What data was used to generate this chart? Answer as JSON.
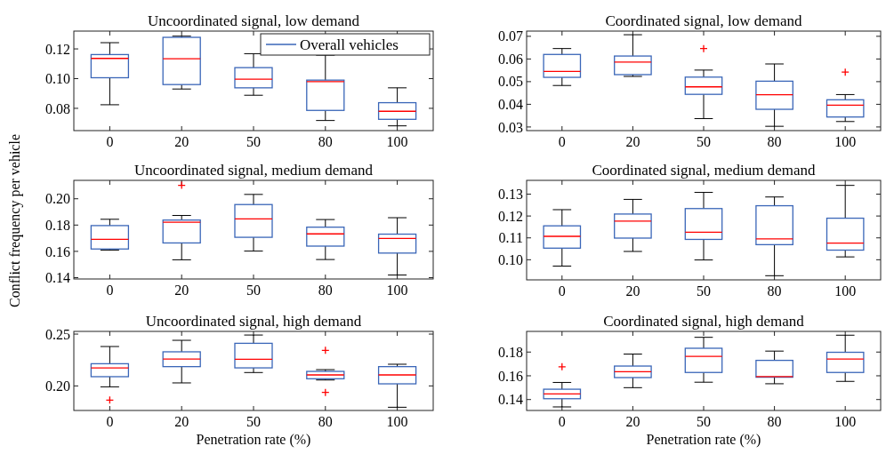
{
  "chart_data": [
    {
      "type": "box",
      "title": "Uncoordinated signal, low demand",
      "categories": [
        "0",
        "20",
        "50",
        "80",
        "100"
      ],
      "ylim": [
        0.065,
        0.132
      ],
      "yticks": [
        {
          "value": 0.08,
          "label": "0.08"
        },
        {
          "value": 0.1,
          "label": "0.10"
        },
        {
          "value": 0.12,
          "label": "0.12"
        }
      ],
      "legend": "top right",
      "series": [
        {
          "name": "Overall vehicles",
          "color": "#3a66b8",
          "boxes": [
            {
              "low": 0.0824,
              "q1": 0.1006,
              "median": 0.1136,
              "q3": 0.1162,
              "high": 0.1242
            },
            {
              "low": 0.093,
              "q1": 0.096,
              "median": 0.1134,
              "q3": 0.1278,
              "high": 0.1286
            },
            {
              "low": 0.0888,
              "q1": 0.0938,
              "median": 0.0996,
              "q3": 0.1074,
              "high": 0.1168
            },
            {
              "low": 0.0718,
              "q1": 0.0786,
              "median": 0.098,
              "q3": 0.099,
              "high": 0.1158
            },
            {
              "low": 0.0682,
              "q1": 0.0726,
              "median": 0.078,
              "q3": 0.0838,
              "high": 0.0938
            }
          ]
        }
      ]
    },
    {
      "type": "box",
      "title": "Coordinated signal, low demand",
      "categories": [
        "0",
        "20",
        "50",
        "80",
        "100"
      ],
      "ylim": [
        0.0284,
        0.0723
      ],
      "yticks": [
        {
          "value": 0.03,
          "label": "0.03"
        },
        {
          "value": 0.04,
          "label": "0.04"
        },
        {
          "value": 0.05,
          "label": "0.05"
        },
        {
          "value": 0.06,
          "label": "0.06"
        },
        {
          "value": 0.07,
          "label": "0.07"
        }
      ],
      "series": [
        {
          "color": "#3a66b8",
          "boxes": [
            {
              "low": 0.0483,
              "q1": 0.0519,
              "median": 0.0545,
              "q3": 0.062,
              "high": 0.0646
            },
            {
              "low": 0.0523,
              "q1": 0.0531,
              "median": 0.0586,
              "q3": 0.0613,
              "high": 0.0707
            },
            {
              "low": 0.0337,
              "q1": 0.0444,
              "median": 0.0477,
              "q3": 0.052,
              "high": 0.0551,
              "outliers": [
                0.0646
              ]
            },
            {
              "low": 0.0303,
              "q1": 0.0378,
              "median": 0.0442,
              "q3": 0.0502,
              "high": 0.0578
            },
            {
              "low": 0.0324,
              "q1": 0.0344,
              "median": 0.0396,
              "q3": 0.042,
              "high": 0.0443,
              "outliers": [
                0.0542
              ]
            }
          ]
        }
      ]
    },
    {
      "type": "box",
      "title": "Uncoordinated signal, medium demand",
      "ylabel": "Conflict frequency per vehicle",
      "categories": [
        "0",
        "20",
        "50",
        "80",
        "100"
      ],
      "ylim": [
        0.139,
        0.214
      ],
      "yticks": [
        {
          "value": 0.14,
          "label": "0.14"
        },
        {
          "value": 0.16,
          "label": "0.16"
        },
        {
          "value": 0.18,
          "label": "0.18"
        },
        {
          "value": 0.2,
          "label": "0.20"
        }
      ],
      "series": [
        {
          "color": "#3a66b8",
          "boxes": [
            {
              "low": 0.1609,
              "q1": 0.1618,
              "median": 0.1691,
              "q3": 0.1796,
              "high": 0.1844
            },
            {
              "low": 0.1536,
              "q1": 0.1664,
              "median": 0.1822,
              "q3": 0.1838,
              "high": 0.1873,
              "outliers": [
                0.2102
              ]
            },
            {
              "low": 0.1602,
              "q1": 0.1707,
              "median": 0.1847,
              "q3": 0.1956,
              "high": 0.2033
            },
            {
              "low": 0.1538,
              "q1": 0.164,
              "median": 0.1733,
              "q3": 0.1784,
              "high": 0.1842
            },
            {
              "low": 0.142,
              "q1": 0.1587,
              "median": 0.1698,
              "q3": 0.1731,
              "high": 0.1856
            }
          ]
        }
      ]
    },
    {
      "type": "box",
      "title": "Coordinated signal, medium demand",
      "categories": [
        "0",
        "20",
        "50",
        "80",
        "100"
      ],
      "ylim": [
        0.0908,
        0.1363
      ],
      "yticks": [
        {
          "value": 0.1,
          "label": "0.10"
        },
        {
          "value": 0.11,
          "label": "0.11"
        },
        {
          "value": 0.12,
          "label": "0.12"
        },
        {
          "value": 0.13,
          "label": "0.13"
        }
      ],
      "series": [
        {
          "color": "#3a66b8",
          "boxes": [
            {
              "low": 0.0971,
              "q1": 0.1053,
              "median": 0.1107,
              "q3": 0.1155,
              "high": 0.1229
            },
            {
              "low": 0.1038,
              "q1": 0.1099,
              "median": 0.1177,
              "q3": 0.1209,
              "high": 0.1276
            },
            {
              "low": 0.0999,
              "q1": 0.1093,
              "median": 0.1126,
              "q3": 0.1234,
              "high": 0.1308
            },
            {
              "low": 0.0927,
              "q1": 0.1069,
              "median": 0.1095,
              "q3": 0.1247,
              "high": 0.1287
            },
            {
              "low": 0.1013,
              "q1": 0.1044,
              "median": 0.1076,
              "q3": 0.119,
              "high": 0.134
            }
          ]
        }
      ]
    },
    {
      "type": "box",
      "title": "Uncoordinated signal, high demand",
      "xlabel": "Penetration rate (%)",
      "categories": [
        "0",
        "20",
        "50",
        "80",
        "100"
      ],
      "ylim": [
        0.1763,
        0.2526
      ],
      "yticks": [
        {
          "value": 0.2,
          "label": "0.20"
        },
        {
          "value": 0.25,
          "label": "0.25"
        }
      ],
      "series": [
        {
          "color": "#3a66b8",
          "boxes": [
            {
              "low": 0.1991,
              "q1": 0.2089,
              "median": 0.2174,
              "q3": 0.2214,
              "high": 0.238,
              "outliers": [
                0.1863
              ]
            },
            {
              "low": 0.2029,
              "q1": 0.2186,
              "median": 0.226,
              "q3": 0.2329,
              "high": 0.244
            },
            {
              "low": 0.2129,
              "q1": 0.2174,
              "median": 0.2257,
              "q3": 0.2411,
              "high": 0.2491
            },
            {
              "low": 0.2057,
              "q1": 0.2069,
              "median": 0.2106,
              "q3": 0.214,
              "high": 0.2157,
              "outliers": [
                0.2343,
                0.1937
              ]
            },
            {
              "low": 0.1794,
              "q1": 0.202,
              "median": 0.2106,
              "q3": 0.2186,
              "high": 0.2209
            }
          ]
        }
      ]
    },
    {
      "type": "box",
      "title": "Coordinated signal, high demand",
      "xlabel": "Penetration rate (%)",
      "categories": [
        "0",
        "20",
        "50",
        "80",
        "100"
      ],
      "ylim": [
        0.1308,
        0.1974
      ],
      "yticks": [
        {
          "value": 0.14,
          "label": "0.14"
        },
        {
          "value": 0.16,
          "label": "0.16"
        },
        {
          "value": 0.18,
          "label": "0.18"
        }
      ],
      "series": [
        {
          "color": "#3a66b8",
          "boxes": [
            {
              "low": 0.1338,
              "q1": 0.1407,
              "median": 0.1447,
              "q3": 0.1487,
              "high": 0.1544,
              "outliers": [
                0.1676
              ]
            },
            {
              "low": 0.15,
              "q1": 0.1585,
              "median": 0.1635,
              "q3": 0.1682,
              "high": 0.1783
            },
            {
              "low": 0.1546,
              "q1": 0.1628,
              "median": 0.1763,
              "q3": 0.1832,
              "high": 0.1924
            },
            {
              "low": 0.1533,
              "q1": 0.1588,
              "median": 0.1593,
              "q3": 0.173,
              "high": 0.1808
            },
            {
              "low": 0.1553,
              "q1": 0.1628,
              "median": 0.1741,
              "q3": 0.1798,
              "high": 0.1942
            }
          ]
        }
      ]
    }
  ]
}
